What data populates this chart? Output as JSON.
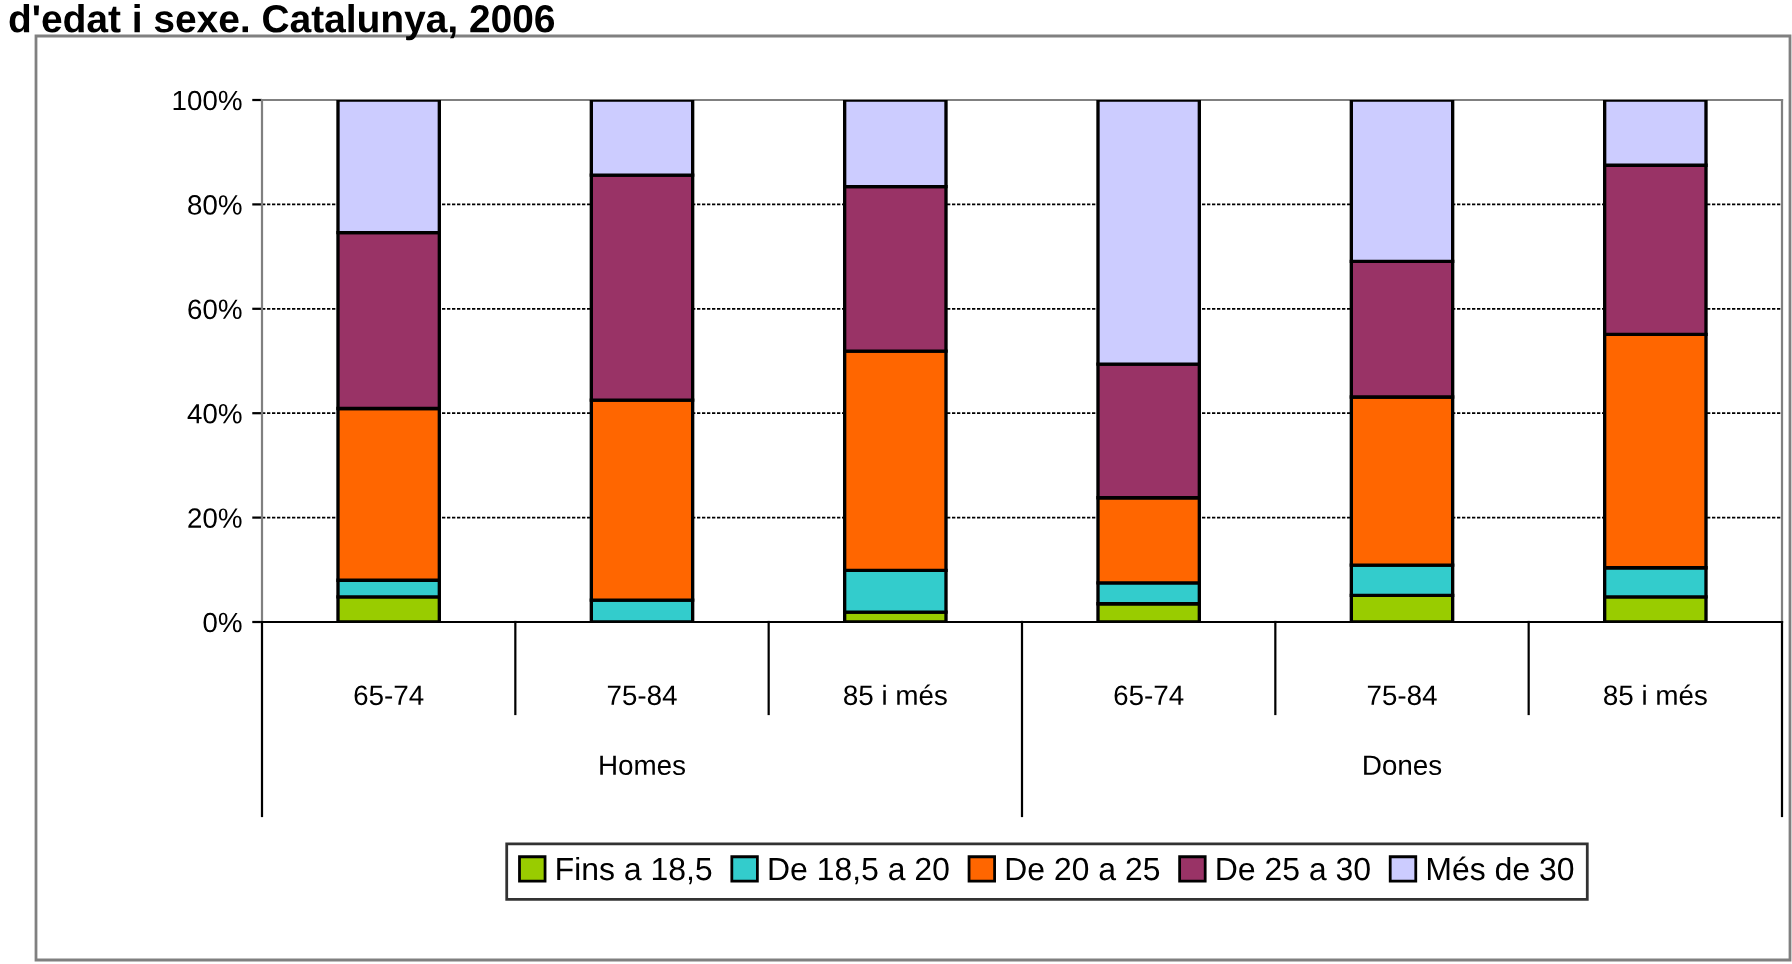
{
  "chart_data": {
    "type": "bar",
    "stacked": true,
    "title": "d'edat i sexe. Catalunya, 2006",
    "categories": [
      "65-74",
      "75-84",
      "85 i més",
      "65-74",
      "75-84",
      "85 i més"
    ],
    "annotations": [
      "Homes",
      "Dones"
    ],
    "series": [
      {
        "name": "Fins a 18,5",
        "color": "#99cc00",
        "values": [
          4.8,
          0,
          1.9,
          3.5,
          5.1,
          4.8
        ]
      },
      {
        "name": "De 18,5 a 20",
        "color": "#33cccc",
        "values": [
          3.2,
          4.2,
          8.0,
          4.0,
          5.8,
          5.6
        ]
      },
      {
        "name": "De 20 a 25",
        "color": "#ff6600",
        "values": [
          32.9,
          38.3,
          42.0,
          16.3,
          32.2,
          44.7
        ]
      },
      {
        "name": "De 25 a 30",
        "color": "#993366",
        "values": [
          33.7,
          43.1,
          31.5,
          25.6,
          26.0,
          32.4
        ]
      },
      {
        "name": "Més de 30",
        "color": "#ccccff",
        "values": [
          25.4,
          14.4,
          16.6,
          50.6,
          30.9,
          12.5
        ]
      }
    ],
    "ylim": [
      0,
      100
    ],
    "yticks": [
      {
        "value": 0,
        "label": "0%"
      },
      {
        "value": 20,
        "label": "20%"
      },
      {
        "value": 40,
        "label": "40%"
      },
      {
        "value": 60,
        "label": "60%"
      },
      {
        "value": 80,
        "label": "80%"
      },
      {
        "value": 100,
        "label": "100%"
      }
    ],
    "grid": "y",
    "legend": "bottom"
  }
}
